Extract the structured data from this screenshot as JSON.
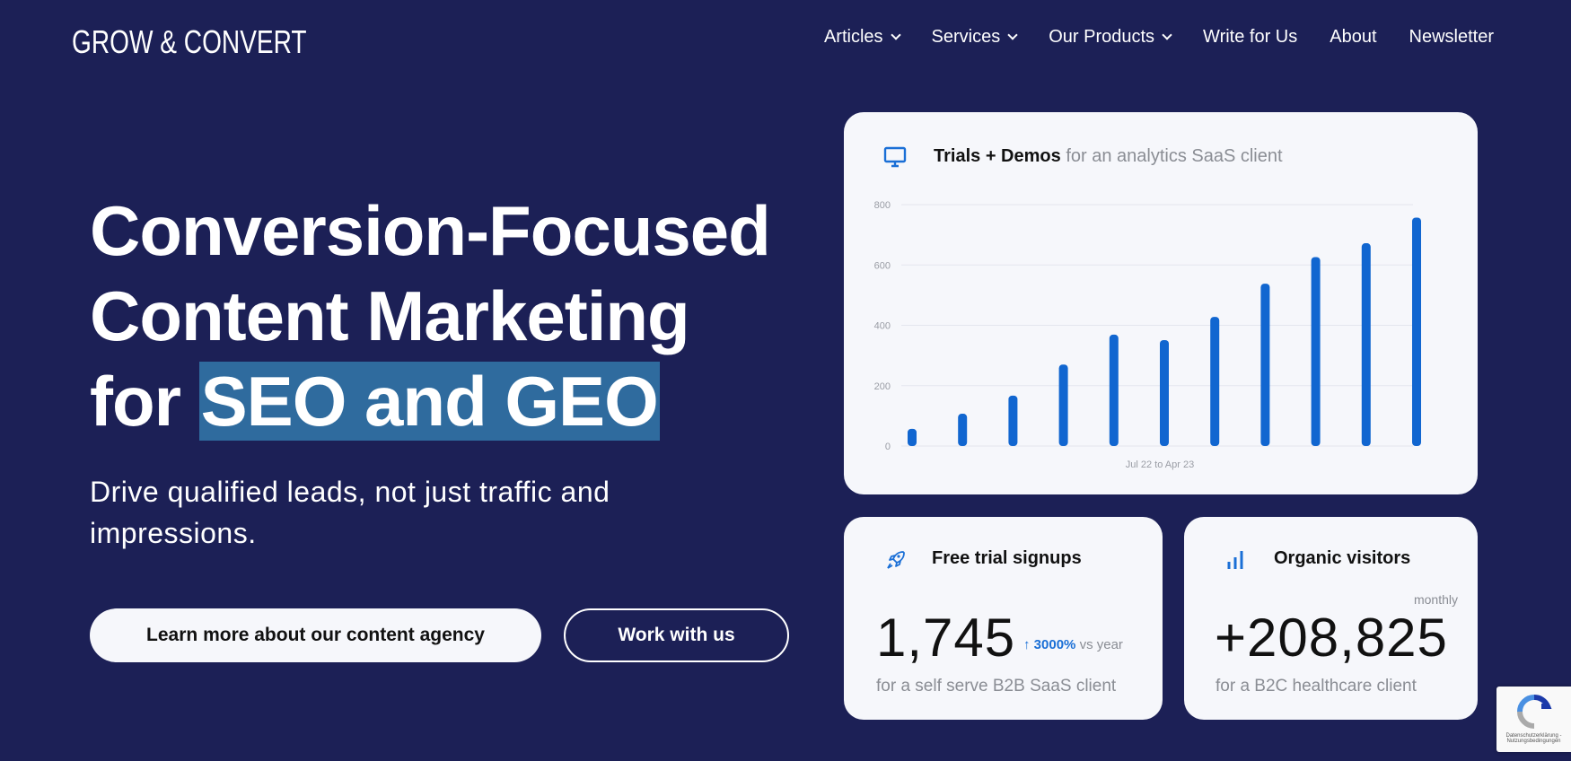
{
  "header": {
    "logo": "GROW & CONVERT",
    "nav": [
      {
        "label": "Articles",
        "dropdown": true
      },
      {
        "label": "Services",
        "dropdown": true
      },
      {
        "label": "Our Products",
        "dropdown": true
      },
      {
        "label": "Write for Us"
      },
      {
        "label": "About"
      },
      {
        "label": "Newsletter"
      }
    ]
  },
  "hero": {
    "line1": "Conversion-Focused",
    "line2": "Content Marketing",
    "line3_prefix": "for ",
    "line3_highlight": "SEO and GEO",
    "subtitle": "Drive qualified leads, not just traffic and impressions.",
    "primary_button": "Learn more about our content agency",
    "secondary_button": "Work with us",
    "highlight_color": "#2f6b9e"
  },
  "chart_card": {
    "icon": "monitor-icon",
    "title": "Trials + Demos",
    "subtitle": "for an analytics SaaS client"
  },
  "chart_data": {
    "type": "bar",
    "title": "Trials + Demos",
    "xlabel": "Jul 22 to Apr 23",
    "ylabel": "",
    "ylim": [
      0,
      800
    ],
    "yticks": [
      0,
      200,
      400,
      600,
      800
    ],
    "grid": true,
    "values": [
      57,
      107,
      167,
      270,
      369,
      351,
      428,
      538,
      626,
      672,
      757
    ],
    "color": "#1166d0"
  },
  "stats": [
    {
      "icon": "rocket-icon",
      "title": "Free trial signups",
      "value": "1,745",
      "change_arrow": "↑",
      "change": "3000%",
      "change_suffix": "vs year",
      "description": "for a self serve B2B SaaS client"
    },
    {
      "icon": "bar-chart-icon",
      "title": "Organic visitors",
      "period": "monthly",
      "value": "+208,825",
      "description": "for a B2C healthcare client"
    }
  ],
  "recaptcha": {
    "text": "Datenschutzerklärung - Nutzungsbedingungen"
  },
  "colors": {
    "background": "#1c2056",
    "accent": "#1a6fd6",
    "card": "#f6f7fb"
  }
}
